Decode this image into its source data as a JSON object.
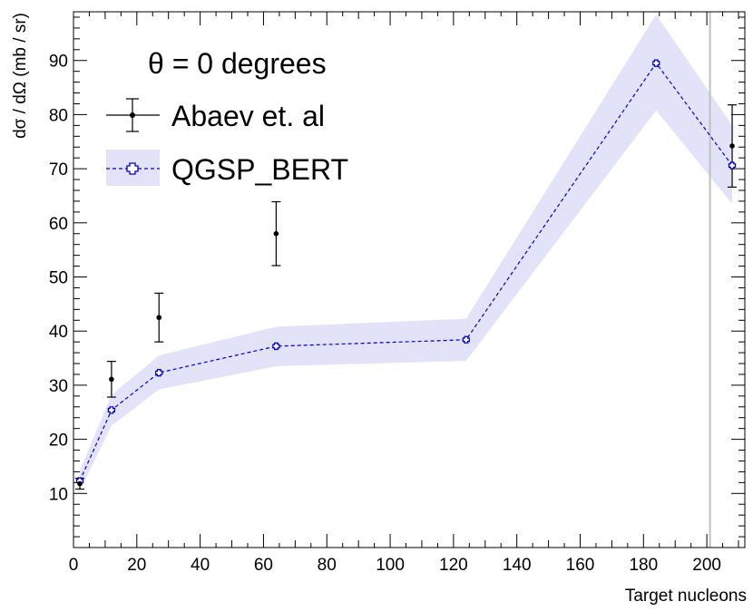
{
  "chart_data": {
    "type": "scatter",
    "title": "",
    "xlabel": "Target nucleons",
    "ylabel": "dσ / dΩ (mb / sr)",
    "xlim": [
      0,
      212
    ],
    "ylim": [
      0,
      99
    ],
    "x_ticks": [
      0,
      20,
      40,
      60,
      80,
      100,
      120,
      140,
      160,
      180,
      200
    ],
    "y_ticks": [
      10,
      20,
      30,
      40,
      50,
      60,
      70,
      80,
      90
    ],
    "grid": false,
    "legend_title": "θ = 0 degrees",
    "legend_position": "top-left",
    "vline": {
      "x": 201,
      "color": "#c0c0c0"
    },
    "series": [
      {
        "name": "Abaev et. al",
        "kind": "points-with-errorbars",
        "color": "#000000",
        "x": [
          2,
          12,
          27,
          64,
          208
        ],
        "y": [
          11.8,
          31.1,
          42.5,
          58.0,
          74.2
        ],
        "yerr": [
          1.0,
          3.3,
          4.5,
          5.9,
          7.6
        ]
      },
      {
        "name": "QGSP_BERT",
        "kind": "line-with-band",
        "color": "#0000cc",
        "band_color": "#e2e2f8",
        "x": [
          2,
          12,
          27,
          64,
          124,
          184,
          208
        ],
        "y": [
          12.3,
          25.4,
          32.3,
          37.2,
          38.4,
          89.5,
          70.6
        ],
        "band_low": [
          10.5,
          22.5,
          29.2,
          33.5,
          34.5,
          80.8,
          63.5
        ],
        "band_high": [
          14.2,
          28.2,
          35.5,
          40.8,
          42.3,
          98.5,
          78.0
        ]
      }
    ]
  }
}
